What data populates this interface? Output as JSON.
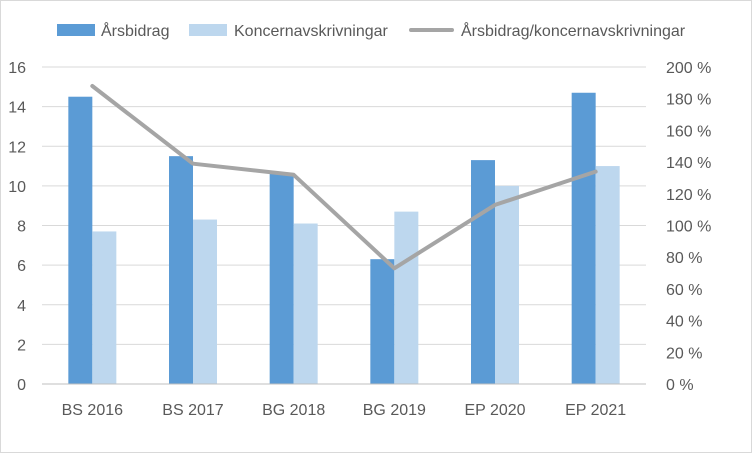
{
  "chart_data": {
    "type": "bar",
    "categories": [
      "BS 2016",
      "BS 2017",
      "BG 2018",
      "BG 2019",
      "EP 2020",
      "EP 2021"
    ],
    "series": [
      {
        "name": "Årsbidrag",
        "kind": "bar",
        "axis": "left",
        "color": "#5B9BD5",
        "values": [
          14.5,
          11.5,
          10.6,
          6.3,
          11.3,
          14.7
        ]
      },
      {
        "name": "Koncernavskrivningar",
        "kind": "bar",
        "axis": "left",
        "color": "#BDD7EE",
        "values": [
          7.7,
          8.3,
          8.1,
          8.7,
          10.0,
          11.0
        ]
      },
      {
        "name": "Årsbidrag/koncernavskrivningar",
        "kind": "line",
        "axis": "right",
        "color": "#A5A5A5",
        "values": [
          188,
          139,
          132,
          73,
          113,
          134
        ]
      }
    ],
    "left_axis": {
      "min": 0,
      "max": 16,
      "step": 2,
      "tick_labels": [
        "0",
        "2",
        "4",
        "6",
        "8",
        "10",
        "12",
        "14",
        "16"
      ]
    },
    "right_axis": {
      "min": 0,
      "max": 200,
      "step": 20,
      "tick_labels": [
        "0 %",
        "20 %",
        "40 %",
        "60 %",
        "80 %",
        "100 %",
        "120 %",
        "140 %",
        "160 %",
        "180 %",
        "200 %"
      ]
    },
    "grid": true,
    "legend_position": "top",
    "gridline_color": "#d9d9d9",
    "axis_line_color": "#bfbfbf"
  }
}
